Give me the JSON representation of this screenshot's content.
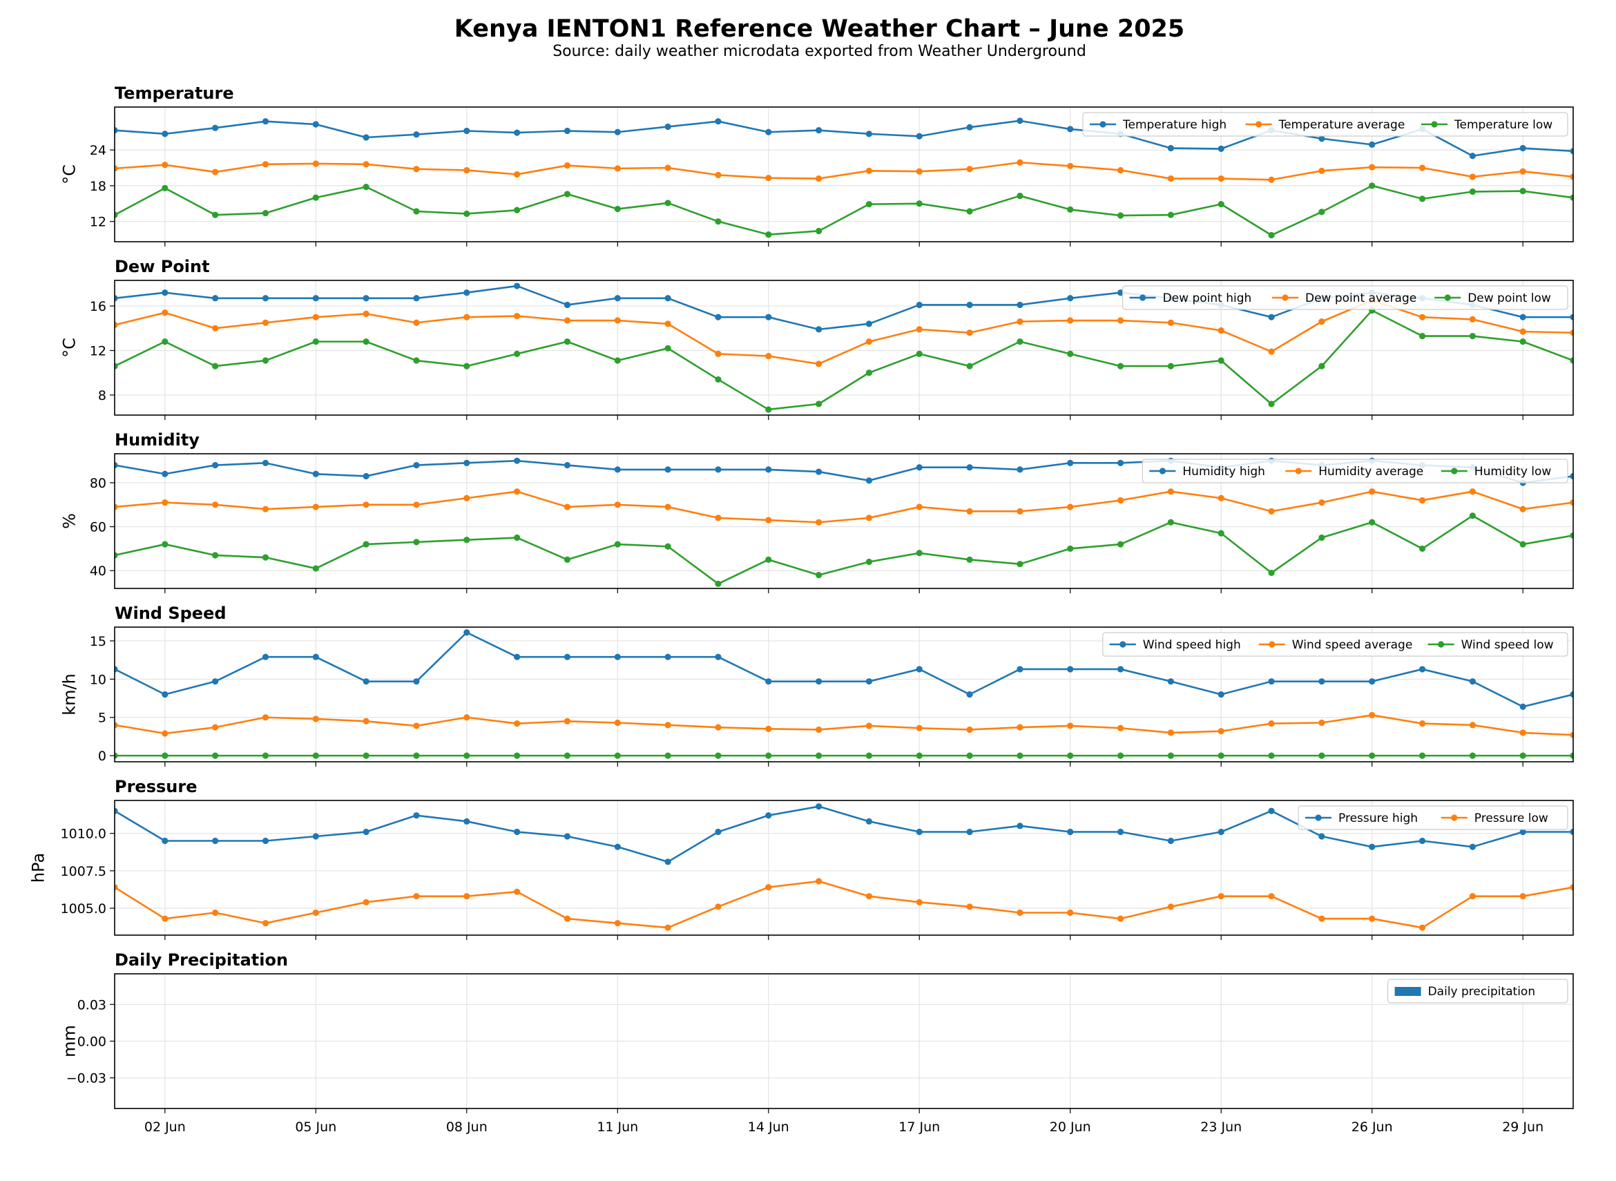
{
  "title": "Kenya IENTON1 Reference Weather Chart – June 2025",
  "subtitle": "Source: daily weather microdata exported from Weather Underground",
  "colors": {
    "blue": "#1f77b4",
    "orange": "#ff7f0e",
    "green": "#2ca02c",
    "grid": "#e3e3e3"
  },
  "x_ticks": [
    "02 Jun",
    "05 Jun",
    "08 Jun",
    "11 Jun",
    "14 Jun",
    "17 Jun",
    "20 Jun",
    "23 Jun",
    "26 Jun",
    "29 Jun"
  ],
  "chart_data": [
    {
      "type": "line",
      "title": "Temperature",
      "ylabel": "°C",
      "x": [
        "2025-06-01",
        "2025-06-02",
        "2025-06-03",
        "2025-06-04",
        "2025-06-05",
        "2025-06-06",
        "2025-06-07",
        "2025-06-08",
        "2025-06-09",
        "2025-06-10",
        "2025-06-11",
        "2025-06-12",
        "2025-06-13",
        "2025-06-14",
        "2025-06-15",
        "2025-06-16",
        "2025-06-17",
        "2025-06-18",
        "2025-06-19",
        "2025-06-20",
        "2025-06-21",
        "2025-06-22",
        "2025-06-23",
        "2025-06-24",
        "2025-06-25",
        "2025-06-26",
        "2025-06-27",
        "2025-06-28",
        "2025-06-29",
        "2025-06-30"
      ],
      "ylim": [
        8.6,
        31.2
      ],
      "yticks": [
        12,
        18,
        24
      ],
      "legend": "top-right",
      "series": [
        {
          "name": "Temperature high",
          "color": "blue",
          "values": [
            27.3,
            26.7,
            27.7,
            28.8,
            28.3,
            26.1,
            26.6,
            27.2,
            26.9,
            27.2,
            27.0,
            27.9,
            28.8,
            27.0,
            27.3,
            26.7,
            26.3,
            27.8,
            28.9,
            27.5,
            26.7,
            24.3,
            24.2,
            27.3,
            25.9,
            24.9,
            27.5,
            23.0,
            24.3,
            23.8
          ]
        },
        {
          "name": "Temperature average",
          "color": "orange",
          "values": [
            20.9,
            21.5,
            20.3,
            21.6,
            21.7,
            21.6,
            20.8,
            20.6,
            19.9,
            21.4,
            20.9,
            21.0,
            19.8,
            19.3,
            19.2,
            20.5,
            20.4,
            20.8,
            21.9,
            21.3,
            20.6,
            19.2,
            19.2,
            19.0,
            20.5,
            21.1,
            21.0,
            19.5,
            20.4,
            19.5
          ]
        },
        {
          "name": "Temperature low",
          "color": "green",
          "values": [
            13.1,
            17.6,
            13.1,
            13.4,
            16.0,
            17.8,
            13.7,
            13.3,
            13.9,
            16.6,
            14.1,
            15.1,
            12.0,
            9.8,
            10.4,
            14.9,
            15.0,
            13.7,
            16.3,
            14.0,
            13.0,
            13.1,
            14.9,
            9.7,
            13.6,
            18.0,
            15.8,
            17.0,
            17.1,
            16.0
          ]
        }
      ]
    },
    {
      "type": "line",
      "title": "Dew Point",
      "ylabel": "°C",
      "x": [
        "2025-06-01",
        "2025-06-02",
        "2025-06-03",
        "2025-06-04",
        "2025-06-05",
        "2025-06-06",
        "2025-06-07",
        "2025-06-08",
        "2025-06-09",
        "2025-06-10",
        "2025-06-11",
        "2025-06-12",
        "2025-06-13",
        "2025-06-14",
        "2025-06-15",
        "2025-06-16",
        "2025-06-17",
        "2025-06-18",
        "2025-06-19",
        "2025-06-20",
        "2025-06-21",
        "2025-06-22",
        "2025-06-23",
        "2025-06-24",
        "2025-06-25",
        "2025-06-26",
        "2025-06-27",
        "2025-06-28",
        "2025-06-29",
        "2025-06-30"
      ],
      "ylim": [
        6.2,
        18.3
      ],
      "yticks": [
        8,
        12,
        16
      ],
      "legend": "top-right",
      "series": [
        {
          "name": "Dew point high",
          "color": "blue",
          "values": [
            16.7,
            17.2,
            16.7,
            16.7,
            16.7,
            16.7,
            16.7,
            17.2,
            17.8,
            16.1,
            16.7,
            16.7,
            15.0,
            15.0,
            13.9,
            14.4,
            16.1,
            16.1,
            16.1,
            16.7,
            17.2,
            16.7,
            16.1,
            15.0,
            16.7,
            17.2,
            16.7,
            16.1,
            15.0,
            15.0
          ]
        },
        {
          "name": "Dew point average",
          "color": "orange",
          "values": [
            14.3,
            15.4,
            14.0,
            14.5,
            15.0,
            15.3,
            14.5,
            15.0,
            15.1,
            14.7,
            14.7,
            14.4,
            11.7,
            11.5,
            10.8,
            12.8,
            13.9,
            13.6,
            14.6,
            14.7,
            14.7,
            14.5,
            13.8,
            11.9,
            14.6,
            16.5,
            15.0,
            14.8,
            13.7,
            13.6
          ]
        },
        {
          "name": "Dew point low",
          "color": "green",
          "values": [
            10.6,
            12.8,
            10.6,
            11.1,
            12.8,
            12.8,
            11.1,
            10.6,
            11.7,
            12.8,
            11.1,
            12.2,
            9.4,
            6.7,
            7.2,
            10.0,
            11.7,
            10.6,
            12.8,
            11.7,
            10.6,
            10.6,
            11.1,
            7.2,
            10.6,
            15.6,
            13.3,
            13.3,
            12.8,
            11.1
          ]
        }
      ]
    },
    {
      "type": "line",
      "title": "Humidity",
      "ylabel": "%",
      "x": [
        "2025-06-01",
        "2025-06-02",
        "2025-06-03",
        "2025-06-04",
        "2025-06-05",
        "2025-06-06",
        "2025-06-07",
        "2025-06-08",
        "2025-06-09",
        "2025-06-10",
        "2025-06-11",
        "2025-06-12",
        "2025-06-13",
        "2025-06-14",
        "2025-06-15",
        "2025-06-16",
        "2025-06-17",
        "2025-06-18",
        "2025-06-19",
        "2025-06-20",
        "2025-06-21",
        "2025-06-22",
        "2025-06-23",
        "2025-06-24",
        "2025-06-25",
        "2025-06-26",
        "2025-06-27",
        "2025-06-28",
        "2025-06-29",
        "2025-06-30"
      ],
      "ylim": [
        31.9,
        93.2
      ],
      "yticks": [
        40,
        60,
        80
      ],
      "legend": "top-right",
      "series": [
        {
          "name": "Humidity high",
          "color": "blue",
          "values": [
            88,
            84,
            88,
            89,
            84,
            83,
            88,
            89,
            90,
            88,
            86,
            86,
            86,
            86,
            85,
            81,
            87,
            87,
            86,
            89,
            89,
            90,
            87,
            90,
            88,
            90,
            88,
            87,
            80,
            83
          ]
        },
        {
          "name": "Humidity average",
          "color": "orange",
          "values": [
            69,
            71,
            70,
            68,
            69,
            70,
            70,
            73,
            76,
            69,
            70,
            69,
            64,
            63,
            62,
            64,
            69,
            67,
            67,
            69,
            72,
            76,
            73,
            67,
            71,
            76,
            72,
            76,
            68,
            71
          ]
        },
        {
          "name": "Humidity low",
          "color": "green",
          "values": [
            47,
            52,
            47,
            46,
            41,
            52,
            53,
            54,
            55,
            45,
            52,
            51,
            34,
            45,
            38,
            44,
            48,
            45,
            43,
            50,
            52,
            62,
            57,
            39,
            55,
            62,
            50,
            65,
            52,
            56
          ]
        }
      ]
    },
    {
      "type": "line",
      "title": "Wind Speed",
      "ylabel": "km/h",
      "x": [
        "2025-06-01",
        "2025-06-02",
        "2025-06-03",
        "2025-06-04",
        "2025-06-05",
        "2025-06-06",
        "2025-06-07",
        "2025-06-08",
        "2025-06-09",
        "2025-06-10",
        "2025-06-11",
        "2025-06-12",
        "2025-06-13",
        "2025-06-14",
        "2025-06-15",
        "2025-06-16",
        "2025-06-17",
        "2025-06-18",
        "2025-06-19",
        "2025-06-20",
        "2025-06-21",
        "2025-06-22",
        "2025-06-23",
        "2025-06-24",
        "2025-06-25",
        "2025-06-26",
        "2025-06-27",
        "2025-06-28",
        "2025-06-29",
        "2025-06-30"
      ],
      "ylim": [
        -0.8,
        16.8
      ],
      "yticks": [
        0,
        5,
        10,
        15
      ],
      "legend": "top-right",
      "series": [
        {
          "name": "Wind speed high",
          "color": "blue",
          "values": [
            11.3,
            8.0,
            9.7,
            12.9,
            12.9,
            9.7,
            9.7,
            16.1,
            12.9,
            12.9,
            12.9,
            12.9,
            12.9,
            9.7,
            9.7,
            9.7,
            11.3,
            8.0,
            11.3,
            11.3,
            11.3,
            9.7,
            8.0,
            9.7,
            9.7,
            9.7,
            11.3,
            9.7,
            6.4,
            8.0
          ]
        },
        {
          "name": "Wind speed average",
          "color": "orange",
          "values": [
            4.0,
            2.9,
            3.7,
            5.0,
            4.8,
            4.5,
            3.9,
            5.0,
            4.2,
            4.5,
            4.3,
            4.0,
            3.7,
            3.5,
            3.4,
            3.9,
            3.6,
            3.4,
            3.7,
            3.9,
            3.6,
            3.0,
            3.2,
            4.2,
            4.3,
            5.3,
            4.2,
            4.0,
            3.0,
            2.7
          ]
        },
        {
          "name": "Wind speed low",
          "color": "green",
          "values": [
            0,
            0,
            0,
            0,
            0,
            0,
            0,
            0,
            0,
            0,
            0,
            0,
            0,
            0,
            0,
            0,
            0,
            0,
            0,
            0,
            0,
            0,
            0,
            0,
            0,
            0,
            0,
            0,
            0,
            0
          ]
        }
      ]
    },
    {
      "type": "line",
      "title": "Pressure",
      "ylabel": "hPa",
      "x": [
        "2025-06-01",
        "2025-06-02",
        "2025-06-03",
        "2025-06-04",
        "2025-06-05",
        "2025-06-06",
        "2025-06-07",
        "2025-06-08",
        "2025-06-09",
        "2025-06-10",
        "2025-06-11",
        "2025-06-12",
        "2025-06-13",
        "2025-06-14",
        "2025-06-15",
        "2025-06-16",
        "2025-06-17",
        "2025-06-18",
        "2025-06-19",
        "2025-06-20",
        "2025-06-21",
        "2025-06-22",
        "2025-06-23",
        "2025-06-24",
        "2025-06-25",
        "2025-06-26",
        "2025-06-27",
        "2025-06-28",
        "2025-06-29",
        "2025-06-30"
      ],
      "ylim": [
        1003.2,
        1012.2
      ],
      "yticks": [
        1005.0,
        1007.5,
        1010.0
      ],
      "yticklabels": [
        "1005.0",
        "1007.5",
        "1010.0"
      ],
      "legend": "top-right",
      "series": [
        {
          "name": "Pressure high",
          "color": "blue",
          "values": [
            1011.5,
            1009.5,
            1009.5,
            1009.5,
            1009.8,
            1010.1,
            1011.2,
            1010.8,
            1010.1,
            1009.8,
            1009.1,
            1008.1,
            1010.1,
            1011.2,
            1011.8,
            1010.8,
            1010.1,
            1010.1,
            1010.5,
            1010.1,
            1010.1,
            1009.5,
            1010.1,
            1011.5,
            1009.8,
            1009.1,
            1009.5,
            1009.1,
            1010.1,
            1010.1
          ]
        },
        {
          "name": "Pressure low",
          "color": "orange",
          "values": [
            1006.4,
            1004.3,
            1004.7,
            1004.0,
            1004.7,
            1005.4,
            1005.8,
            1005.8,
            1006.1,
            1004.3,
            1004.0,
            1003.7,
            1005.1,
            1006.4,
            1006.8,
            1005.8,
            1005.4,
            1005.1,
            1004.7,
            1004.7,
            1004.3,
            1005.1,
            1005.8,
            1005.8,
            1004.3,
            1004.3,
            1003.7,
            1005.8,
            1005.8,
            1006.4
          ]
        }
      ]
    },
    {
      "type": "bar",
      "title": "Daily Precipitation",
      "ylabel": "mm",
      "x": [
        "2025-06-01",
        "2025-06-02",
        "2025-06-03",
        "2025-06-04",
        "2025-06-05",
        "2025-06-06",
        "2025-06-07",
        "2025-06-08",
        "2025-06-09",
        "2025-06-10",
        "2025-06-11",
        "2025-06-12",
        "2025-06-13",
        "2025-06-14",
        "2025-06-15",
        "2025-06-16",
        "2025-06-17",
        "2025-06-18",
        "2025-06-19",
        "2025-06-20",
        "2025-06-21",
        "2025-06-22",
        "2025-06-23",
        "2025-06-24",
        "2025-06-25",
        "2025-06-26",
        "2025-06-27",
        "2025-06-28",
        "2025-06-29",
        "2025-06-30"
      ],
      "ylim": [
        -0.055,
        0.055
      ],
      "yticks": [
        -0.03,
        0.0,
        0.03
      ],
      "yticklabels": [
        "−0.03",
        "0.00",
        "0.03"
      ],
      "legend": "top-right",
      "series": [
        {
          "name": "Daily precipitation",
          "color": "blue",
          "values": [
            0,
            0,
            0,
            0,
            0,
            0,
            0,
            0,
            0,
            0,
            0,
            0,
            0,
            0,
            0,
            0,
            0,
            0,
            0,
            0,
            0,
            0,
            0,
            0,
            0,
            0,
            0,
            0,
            0,
            0
          ]
        }
      ]
    }
  ]
}
